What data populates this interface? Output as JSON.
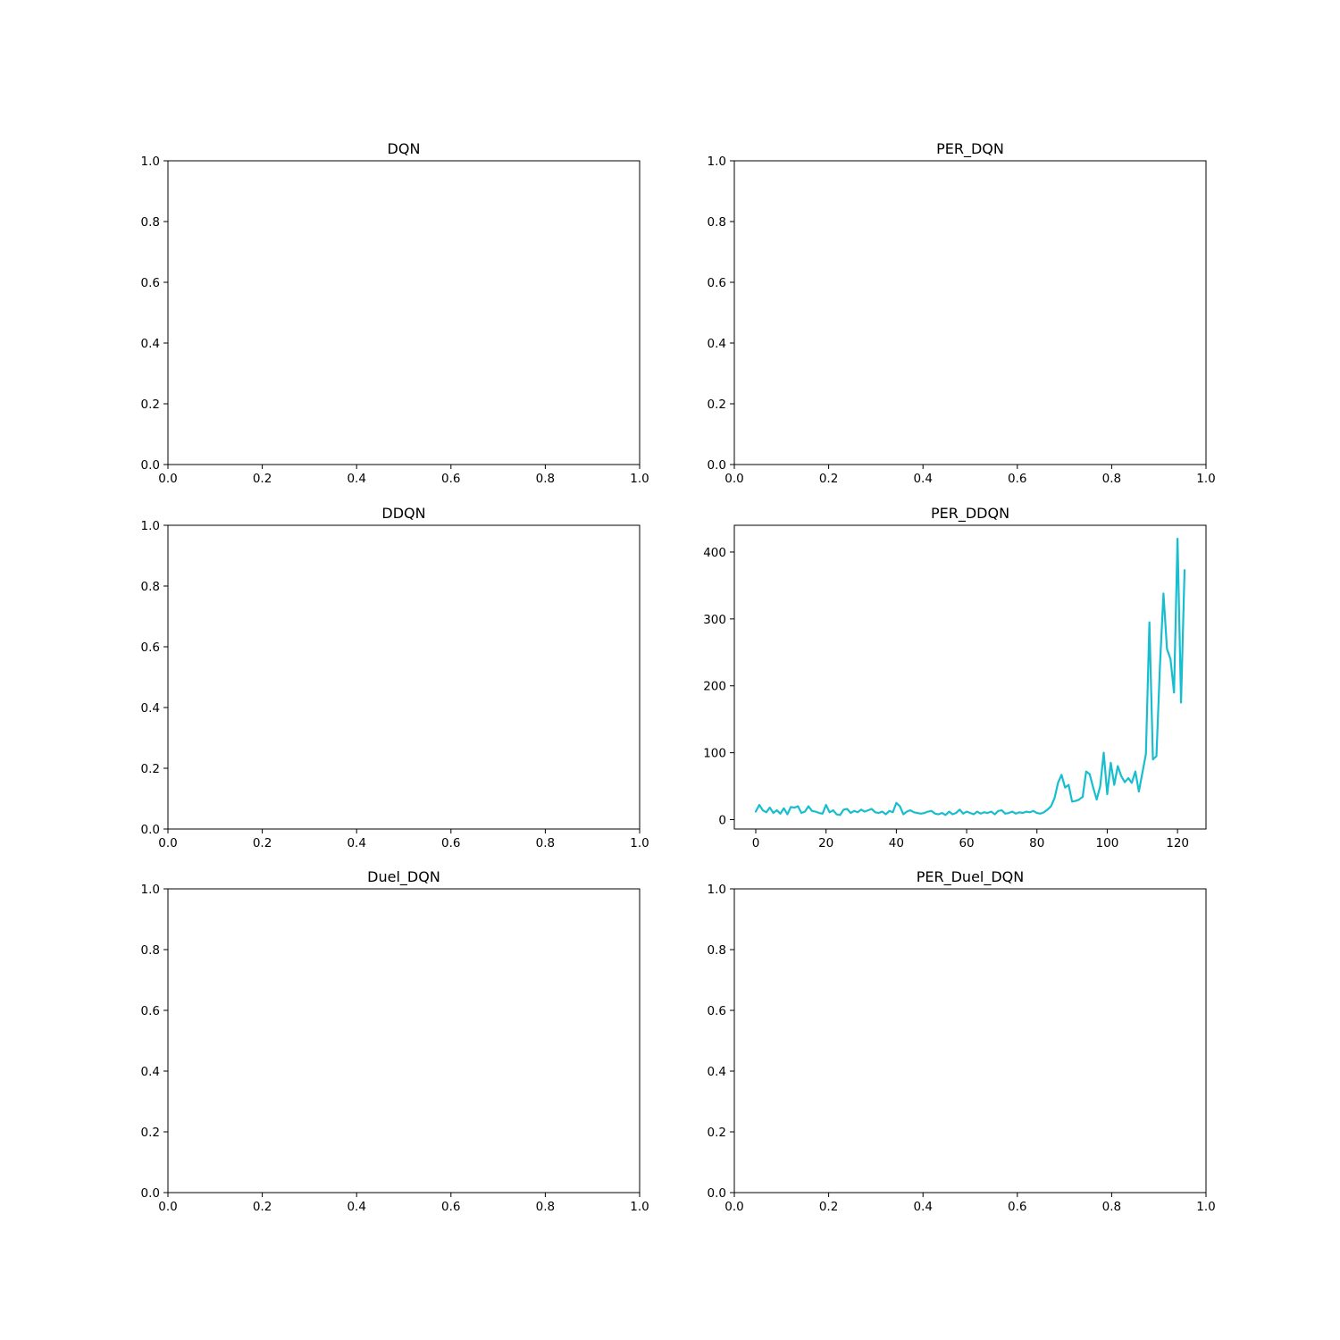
{
  "chart_data": [
    {
      "type": "line",
      "title": "DQN",
      "xlim": [
        0,
        1
      ],
      "ylim": [
        0,
        1
      ],
      "xticks": [
        "0.0",
        "0.2",
        "0.4",
        "0.6",
        "0.8",
        "1.0"
      ],
      "yticks": [
        "0.0",
        "0.2",
        "0.4",
        "0.6",
        "0.8",
        "1.0"
      ],
      "series": []
    },
    {
      "type": "line",
      "title": "PER_DQN",
      "xlim": [
        0,
        1
      ],
      "ylim": [
        0,
        1
      ],
      "xticks": [
        "0.0",
        "0.2",
        "0.4",
        "0.6",
        "0.8",
        "1.0"
      ],
      "yticks": [
        "0.0",
        "0.2",
        "0.4",
        "0.6",
        "0.8",
        "1.0"
      ],
      "series": []
    },
    {
      "type": "line",
      "title": "DDQN",
      "xlim": [
        0,
        1
      ],
      "ylim": [
        0,
        1
      ],
      "xticks": [
        "0.0",
        "0.2",
        "0.4",
        "0.6",
        "0.8",
        "1.0"
      ],
      "yticks": [
        "0.0",
        "0.2",
        "0.4",
        "0.6",
        "0.8",
        "1.0"
      ],
      "series": []
    },
    {
      "type": "line",
      "title": "PER_DDQN",
      "xlim": [
        -6.1,
        128.1
      ],
      "ylim": [
        -14,
        440
      ],
      "xticks": [
        "0",
        "20",
        "40",
        "60",
        "80",
        "100",
        "120"
      ],
      "yticks": [
        "0",
        "100",
        "200",
        "300",
        "400"
      ],
      "series": [
        {
          "color": "#17becf",
          "x": [
            0,
            1,
            2,
            3,
            4,
            5,
            6,
            7,
            8,
            9,
            10,
            11,
            12,
            13,
            14,
            15,
            16,
            17,
            18,
            19,
            20,
            21,
            22,
            23,
            24,
            25,
            26,
            27,
            28,
            29,
            30,
            31,
            32,
            33,
            34,
            35,
            36,
            37,
            38,
            39,
            40,
            41,
            42,
            43,
            44,
            45,
            46,
            47,
            48,
            49,
            50,
            51,
            52,
            53,
            54,
            55,
            56,
            57,
            58,
            59,
            60,
            61,
            62,
            63,
            64,
            65,
            66,
            67,
            68,
            69,
            70,
            71,
            72,
            73,
            74,
            75,
            76,
            77,
            78,
            79,
            80,
            81,
            82,
            83,
            84,
            85,
            86,
            87,
            88,
            89,
            90,
            91,
            92,
            93,
            94,
            95,
            96,
            97,
            98,
            99,
            100,
            101,
            102,
            103,
            104,
            105,
            106,
            107,
            108,
            109,
            110,
            111,
            112,
            113,
            114,
            115,
            116,
            117,
            118,
            119,
            120,
            121,
            122
          ],
          "y": [
            12,
            22,
            14,
            11,
            18,
            10,
            14,
            9,
            17,
            8,
            19,
            18,
            20,
            10,
            12,
            20,
            13,
            12,
            10,
            9,
            22,
            11,
            14,
            8,
            7,
            15,
            16,
            10,
            13,
            11,
            15,
            12,
            14,
            16,
            11,
            10,
            12,
            8,
            13,
            11,
            25,
            20,
            8,
            12,
            14,
            11,
            10,
            9,
            10,
            12,
            13,
            9,
            8,
            10,
            7,
            12,
            8,
            10,
            15,
            9,
            12,
            10,
            8,
            12,
            9,
            11,
            10,
            12,
            8,
            13,
            14,
            9,
            10,
            12,
            9,
            11,
            10,
            12,
            11,
            13,
            10,
            9,
            11,
            15,
            20,
            32,
            55,
            67,
            48,
            52,
            27,
            28,
            30,
            34,
            72,
            68,
            48,
            30,
            50,
            100,
            38,
            85,
            52,
            80,
            65,
            56,
            62,
            55,
            72,
            42,
            70,
            98,
            295,
            90,
            95,
            230,
            338,
            255,
            240,
            190,
            420,
            175,
            373
          ]
        }
      ]
    },
    {
      "type": "line",
      "title": "Duel_DQN",
      "xlim": [
        0,
        1
      ],
      "ylim": [
        0,
        1
      ],
      "xticks": [
        "0.0",
        "0.2",
        "0.4",
        "0.6",
        "0.8",
        "1.0"
      ],
      "yticks": [
        "0.0",
        "0.2",
        "0.4",
        "0.6",
        "0.8",
        "1.0"
      ],
      "series": []
    },
    {
      "type": "line",
      "title": "PER_Duel_DQN",
      "xlim": [
        0,
        1
      ],
      "ylim": [
        0,
        1
      ],
      "xticks": [
        "0.0",
        "0.2",
        "0.4",
        "0.6",
        "0.8",
        "1.0"
      ],
      "yticks": [
        "0.0",
        "0.2",
        "0.4",
        "0.6",
        "0.8",
        "1.0"
      ],
      "series": []
    }
  ]
}
